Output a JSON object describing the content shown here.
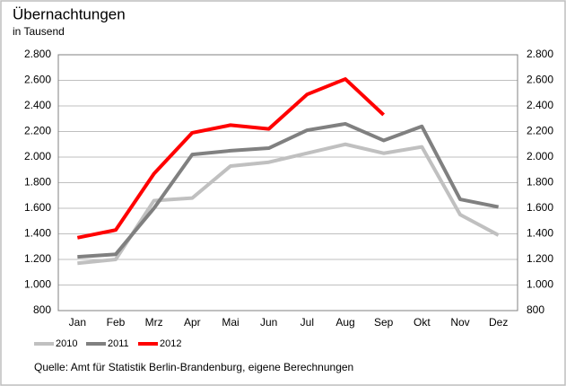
{
  "chart_data": {
    "type": "line",
    "title": "Übernachtungen",
    "subtitle": "in Tausend",
    "source": "Quelle: Amt für Statistik Berlin-Brandenburg, eigene Berechnungen",
    "categories": [
      "Jan",
      "Feb",
      "Mrz",
      "Apr",
      "Mai",
      "Jun",
      "Jul",
      "Aug",
      "Sep",
      "Okt",
      "Nov",
      "Dez"
    ],
    "series": [
      {
        "name": "2010",
        "color": "#c0c0c0",
        "values": [
          1170,
          1200,
          1660,
          1680,
          1930,
          1960,
          2030,
          2100,
          2030,
          2080,
          1550,
          1390
        ]
      },
      {
        "name": "2011",
        "color": "#808080",
        "values": [
          1220,
          1240,
          1600,
          2020,
          2050,
          2070,
          2210,
          2260,
          2130,
          2240,
          1670,
          1610
        ]
      },
      {
        "name": "2012",
        "color": "#ff0000",
        "values": [
          1370,
          1430,
          1870,
          2190,
          2250,
          2220,
          2490,
          2610,
          2330,
          null,
          null,
          null
        ]
      }
    ],
    "ylim": [
      800,
      2800
    ],
    "yticks": [
      {
        "value": 800,
        "label": "800"
      },
      {
        "value": 1000,
        "label": "1.000"
      },
      {
        "value": 1200,
        "label": "1.200"
      },
      {
        "value": 1400,
        "label": "1.400"
      },
      {
        "value": 1600,
        "label": "1.600"
      },
      {
        "value": 1800,
        "label": "1.800"
      },
      {
        "value": 2000,
        "label": "2.000"
      },
      {
        "value": 2200,
        "label": "2.200"
      },
      {
        "value": 2400,
        "label": "2.400"
      },
      {
        "value": 2600,
        "label": "2.600"
      },
      {
        "value": 2800,
        "label": "2.800"
      }
    ],
    "y2lim": [
      800,
      2800
    ],
    "y2ticks": [
      {
        "value": 800,
        "label": "800"
      },
      {
        "value": 1000,
        "label": "1.000"
      },
      {
        "value": 1200,
        "label": "1.200"
      },
      {
        "value": 1400,
        "label": "1.400"
      },
      {
        "value": 1600,
        "label": "1.600"
      },
      {
        "value": 1800,
        "label": "1.800"
      },
      {
        "value": 2000,
        "label": "2.000"
      },
      {
        "value": 2200,
        "label": "2.200"
      },
      {
        "value": 2400,
        "label": "2.400"
      },
      {
        "value": 2600,
        "label": "2.600"
      },
      {
        "value": 2800,
        "label": "2.800"
      }
    ],
    "grid": true,
    "legend": "bottom-left"
  }
}
